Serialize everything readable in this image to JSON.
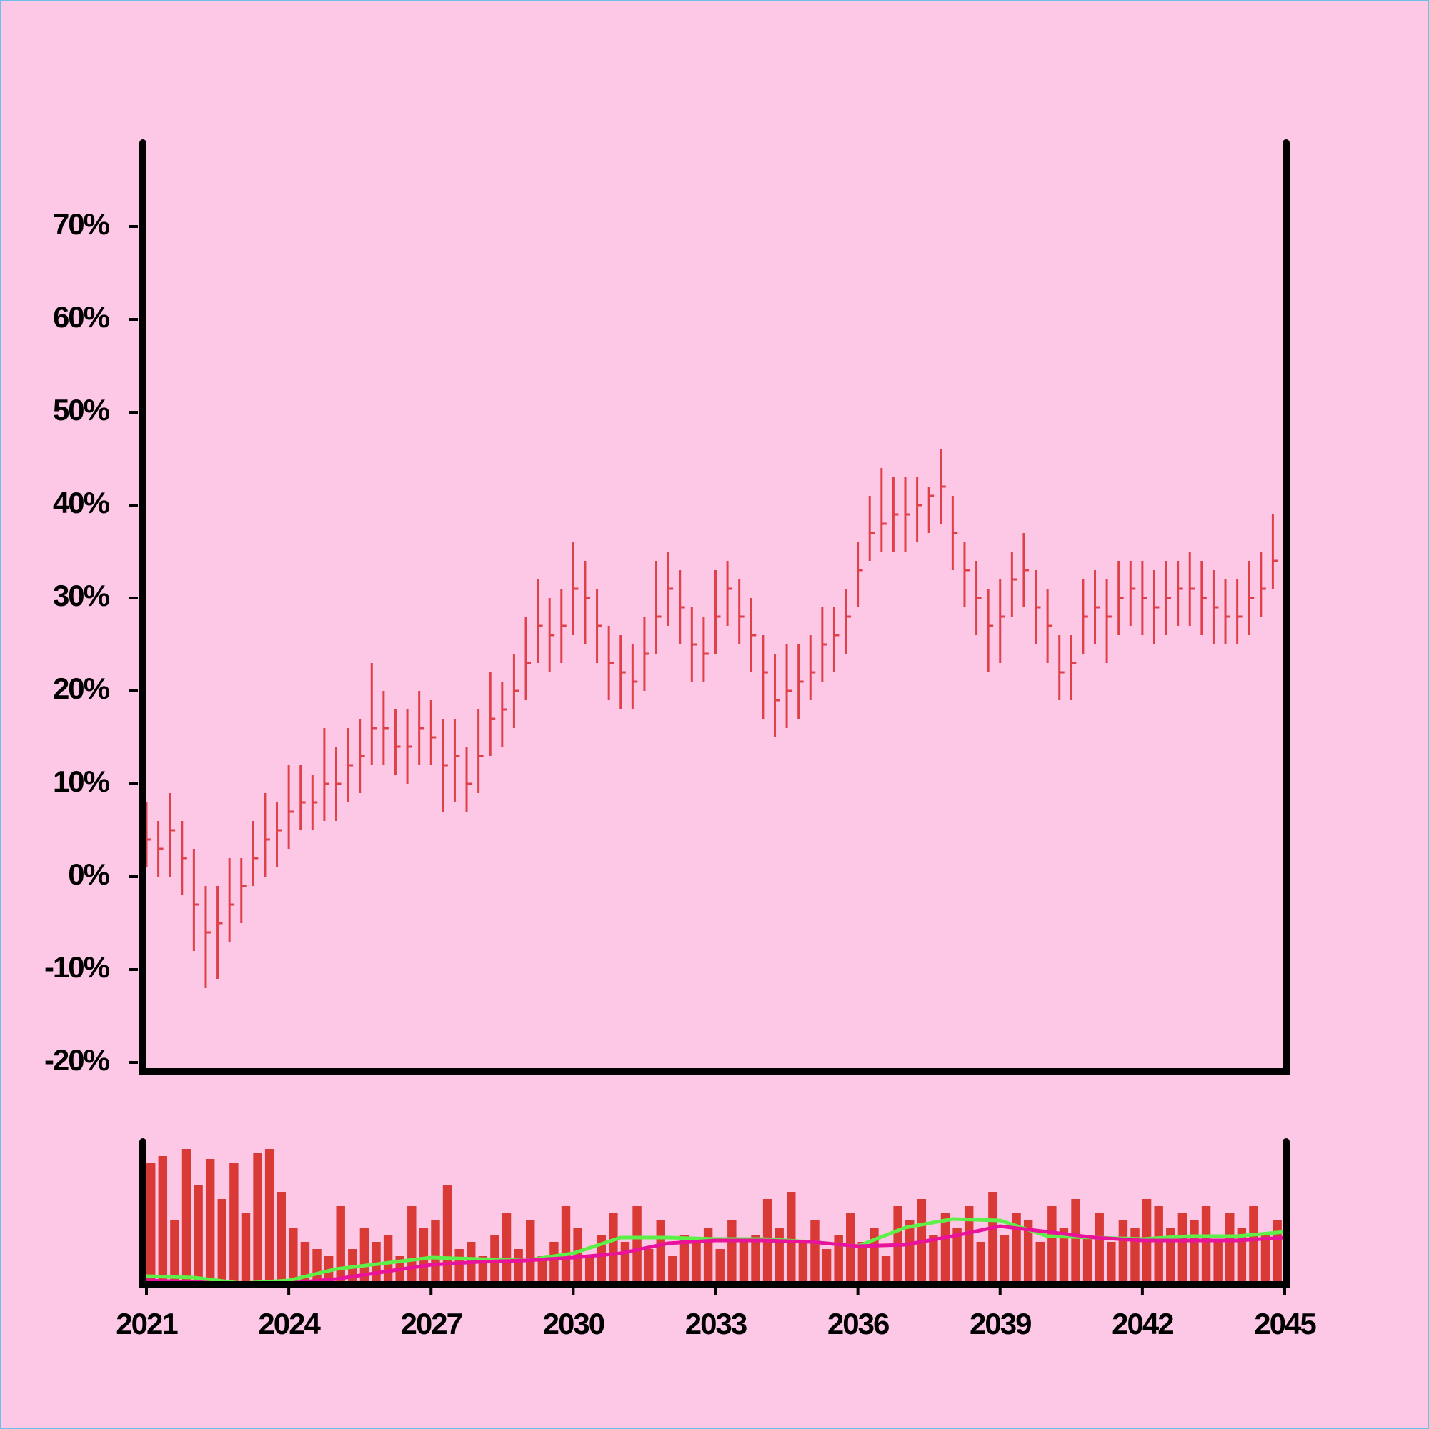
{
  "chart_data": [
    {
      "type": "ohlc",
      "color": "#e04048",
      "x": [
        2021,
        2021.25,
        2021.5,
        2021.75,
        2022,
        2022.25,
        2022.5,
        2022.75,
        2023,
        2023.25,
        2023.5,
        2023.75,
        2024,
        2024.25,
        2024.5,
        2024.75,
        2025,
        2025.25,
        2025.5,
        2025.75,
        2026,
        2026.25,
        2026.5,
        2026.75,
        2027,
        2027.25,
        2027.5,
        2027.75,
        2028,
        2028.25,
        2028.5,
        2028.75,
        2029,
        2029.25,
        2029.5,
        2029.75,
        2030,
        2030.25,
        2030.5,
        2030.75,
        2031,
        2031.25,
        2031.5,
        2031.75,
        2032,
        2032.25,
        2032.5,
        2032.75,
        2033,
        2033.25,
        2033.5,
        2033.75,
        2034,
        2034.25,
        2034.5,
        2034.75,
        2035,
        2035.25,
        2035.5,
        2035.75,
        2036,
        2036.25,
        2036.5,
        2036.75,
        2037,
        2037.25,
        2037.5,
        2037.75,
        2038,
        2038.25,
        2038.5,
        2038.75,
        2039,
        2039.25,
        2039.5,
        2039.75,
        2040,
        2040.25,
        2040.5,
        2040.75,
        2041,
        2041.25,
        2041.5,
        2041.75,
        2042,
        2042.25,
        2042.5,
        2042.75,
        2043,
        2043.25,
        2043.5,
        2043.75,
        2044,
        2044.25,
        2044.5,
        2044.75
      ],
      "high": [
        8,
        6,
        9,
        6,
        3,
        -1,
        -1,
        2,
        2,
        6,
        9,
        8,
        12,
        12,
        11,
        16,
        14,
        16,
        17,
        23,
        20,
        18,
        18,
        20,
        19,
        17,
        17,
        14,
        18,
        22,
        21,
        24,
        28,
        32,
        30,
        31,
        36,
        34,
        31,
        27,
        26,
        25,
        28,
        34,
        35,
        33,
        29,
        28,
        33,
        34,
        32,
        30,
        26,
        24,
        25,
        25,
        26,
        29,
        29,
        31,
        36,
        41,
        44,
        43,
        43,
        43,
        42,
        46,
        41,
        36,
        34,
        31,
        32,
        35,
        37,
        33,
        31,
        26,
        26,
        32,
        33,
        32,
        34,
        34,
        34,
        33,
        34,
        34,
        35,
        34,
        33,
        32,
        32,
        34,
        35,
        39
      ],
      "low": [
        1,
        0,
        0,
        -2,
        -8,
        -12,
        -11,
        -7,
        -5,
        -1,
        0,
        1,
        3,
        5,
        5,
        6,
        6,
        8,
        9,
        12,
        12,
        11,
        10,
        12,
        12,
        7,
        8,
        7,
        9,
        13,
        14,
        16,
        19,
        23,
        22,
        23,
        26,
        25,
        23,
        19,
        18,
        18,
        20,
        24,
        27,
        25,
        21,
        21,
        24,
        27,
        25,
        22,
        17,
        15,
        16,
        17,
        19,
        21,
        22,
        24,
        29,
        34,
        35,
        35,
        35,
        36,
        37,
        38,
        33,
        29,
        26,
        22,
        23,
        28,
        29,
        25,
        23,
        19,
        19,
        24,
        25,
        23,
        26,
        27,
        26,
        25,
        26,
        27,
        27,
        26,
        25,
        25,
        25,
        26,
        28,
        31
      ],
      "close": [
        4,
        3,
        5,
        2,
        -3,
        -6,
        -5,
        -3,
        -1,
        2,
        4,
        5,
        7,
        8,
        8,
        10,
        10,
        12,
        13,
        16,
        16,
        14,
        14,
        16,
        15,
        12,
        13,
        10,
        13,
        17,
        18,
        20,
        23,
        27,
        26,
        27,
        31,
        30,
        27,
        23,
        22,
        21,
        24,
        28,
        31,
        29,
        25,
        24,
        28,
        31,
        28,
        26,
        22,
        19,
        20,
        21,
        22,
        25,
        26,
        28,
        33,
        37,
        38,
        39,
        39,
        40,
        41,
        42,
        37,
        33,
        30,
        27,
        28,
        32,
        33,
        29,
        27,
        22,
        23,
        28,
        29,
        28,
        30,
        31,
        30,
        29,
        30,
        31,
        31,
        30,
        29,
        28,
        28,
        30,
        31,
        34
      ],
      "xlim": [
        2021,
        2045
      ],
      "ylim": [
        -21,
        79
      ],
      "yticks": [
        {
          "value": -20,
          "label": "-20%"
        },
        {
          "value": -10,
          "label": "-10%"
        },
        {
          "value": 0,
          "label": "0%"
        },
        {
          "value": 10,
          "label": "10%"
        },
        {
          "value": 20,
          "label": "20%"
        },
        {
          "value": 30,
          "label": "30%"
        },
        {
          "value": 40,
          "label": "40%"
        },
        {
          "value": 50,
          "label": "50%"
        },
        {
          "value": 60,
          "label": "60%"
        },
        {
          "value": 70,
          "label": "70%"
        }
      ]
    },
    {
      "type": "volume",
      "color": "#d93a35",
      "x": [
        2021,
        2021.25,
        2021.5,
        2021.75,
        2022,
        2022.25,
        2022.5,
        2022.75,
        2023,
        2023.25,
        2023.5,
        2023.75,
        2024,
        2024.25,
        2024.5,
        2024.75,
        2025,
        2025.25,
        2025.5,
        2025.75,
        2026,
        2026.25,
        2026.5,
        2026.75,
        2027,
        2027.25,
        2027.5,
        2027.75,
        2028,
        2028.25,
        2028.5,
        2028.75,
        2029,
        2029.25,
        2029.5,
        2029.75,
        2030,
        2030.25,
        2030.5,
        2030.75,
        2031,
        2031.25,
        2031.5,
        2031.75,
        2032,
        2032.25,
        2032.5,
        2032.75,
        2033,
        2033.25,
        2033.5,
        2033.75,
        2034,
        2034.25,
        2034.5,
        2034.75,
        2035,
        2035.25,
        2035.5,
        2035.75,
        2036,
        2036.25,
        2036.5,
        2036.75,
        2037,
        2037.25,
        2037.5,
        2037.75,
        2038,
        2038.25,
        2038.5,
        2038.75,
        2039,
        2039.25,
        2039.5,
        2039.75,
        2040,
        2040.25,
        2040.5,
        2040.75,
        2041,
        2041.25,
        2041.5,
        2041.75,
        2042,
        2042.25,
        2042.5,
        2042.75,
        2043,
        2043.25,
        2043.5,
        2043.75,
        2044,
        2044.25,
        2044.5,
        2044.75
      ],
      "values": [
        85,
        90,
        45,
        95,
        70,
        88,
        60,
        85,
        50,
        92,
        95,
        65,
        40,
        30,
        25,
        20,
        55,
        25,
        40,
        30,
        35,
        20,
        55,
        40,
        45,
        70,
        25,
        30,
        20,
        35,
        50,
        25,
        45,
        20,
        30,
        55,
        40,
        20,
        35,
        50,
        30,
        55,
        25,
        45,
        20,
        35,
        30,
        40,
        25,
        45,
        30,
        35,
        60,
        40,
        65,
        30,
        45,
        25,
        35,
        50,
        30,
        40,
        20,
        55,
        45,
        60,
        35,
        50,
        40,
        55,
        30,
        65,
        35,
        50,
        45,
        30,
        55,
        40,
        60,
        35,
        50,
        30,
        45,
        40,
        60,
        55,
        40,
        50,
        45,
        55,
        30,
        50,
        40,
        55,
        35,
        45
      ],
      "series": [
        {
          "color": "#5ef04a",
          "x": [
            2021,
            2022,
            2023,
            2024,
            2025,
            2026,
            2027,
            2028,
            2029,
            2030,
            2031,
            2032,
            2033,
            2034,
            2035,
            2036,
            2037,
            2038,
            2039,
            2040,
            2041,
            2042,
            2043,
            2044,
            2045
          ],
          "values": [
            6,
            5,
            1,
            3,
            11,
            15,
            19,
            18,
            17,
            22,
            33,
            33,
            32,
            32,
            30,
            27,
            40,
            46,
            45,
            34,
            33,
            32,
            34,
            34,
            37
          ]
        },
        {
          "color": "#e8139a",
          "x": [
            2021,
            2022,
            2023,
            2024,
            2025,
            2026,
            2027,
            2028,
            2029,
            2030,
            2031,
            2032,
            2033,
            2034,
            2035,
            2036,
            2037,
            2038,
            2039,
            2040,
            2041,
            2042,
            2043,
            2044,
            2045
          ],
          "values": [
            3,
            2,
            0,
            1,
            4,
            9,
            14,
            16,
            17,
            19,
            22,
            29,
            31,
            31,
            30,
            27,
            28,
            34,
            41,
            37,
            33,
            31,
            31,
            31,
            33
          ]
        }
      ],
      "xlim": [
        2021,
        2045
      ],
      "ylim": [
        0,
        100
      ],
      "xticks": [
        2021,
        2024,
        2027,
        2030,
        2033,
        2036,
        2039,
        2042,
        2045
      ]
    }
  ]
}
